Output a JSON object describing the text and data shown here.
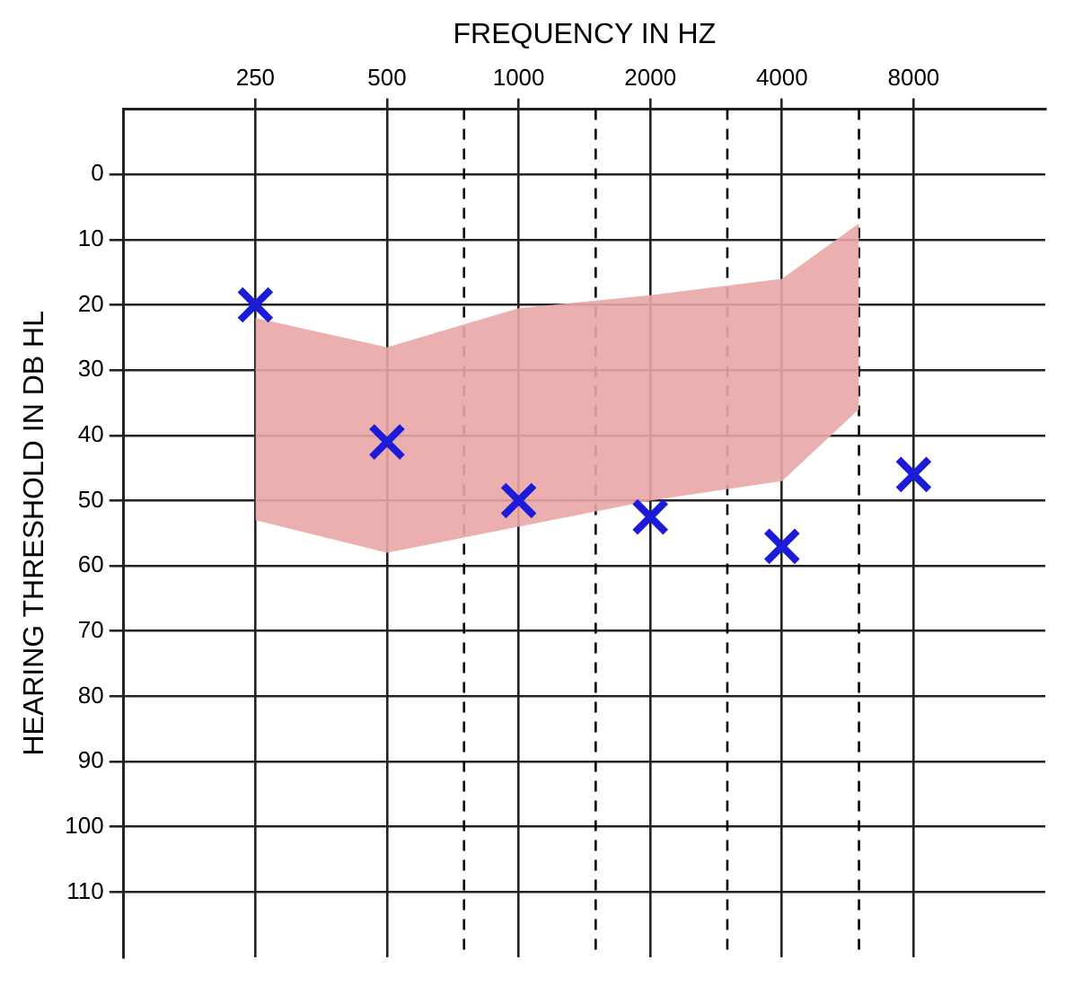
{
  "chart_data": {
    "type": "scatter",
    "xlabel": "FREQUENCY IN HZ",
    "ylabel": "HEARING THRESHOLD IN DB HL",
    "log": "x",
    "xlim": [
      125,
      16000
    ],
    "xticks": [
      250,
      500,
      1000,
      2000,
      4000,
      8000
    ],
    "ylim": [
      120,
      -10
    ],
    "yticks": [
      0,
      10,
      20,
      30,
      40,
      50,
      60,
      70,
      80,
      90,
      100,
      110
    ],
    "grid": true,
    "legend": false,
    "series": [
      {
        "type": "line",
        "color": "#eaa6a6",
        "x": [
          250,
          500,
          1000,
          2000,
          4000,
          6000
        ],
        "values": [
          null,
          null,
          null,
          null,
          null,
          null
        ],
        "upper": [
          22,
          26.5,
          20.5,
          18.5,
          16,
          7.5
        ],
        "lower": [
          53,
          58,
          54,
          50,
          47,
          36
        ]
      },
      {
        "marker": "cross",
        "color": "#1c1cd8",
        "x": [
          250,
          500,
          1000,
          2000,
          4000,
          8000
        ],
        "values": [
          20,
          41,
          50,
          52.5,
          57,
          46
        ]
      }
    ],
    "ref_lines": [
      {
        "axis": "x",
        "value": 750,
        "color": "#000000",
        "line_style": "dashed"
      },
      {
        "axis": "x",
        "value": 1500,
        "color": "#000000",
        "line_style": "dashed"
      },
      {
        "axis": "x",
        "value": 3000,
        "color": "#000000",
        "line_style": "dashed"
      },
      {
        "axis": "x",
        "value": 6000,
        "color": "#000000",
        "line_style": "dashed"
      }
    ]
  }
}
